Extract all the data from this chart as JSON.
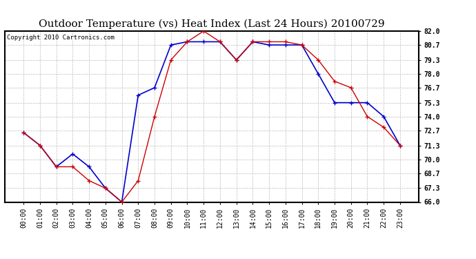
{
  "title": "Outdoor Temperature (vs) Heat Index (Last 24 Hours) 20100729",
  "copyright": "Copyright 2010 Cartronics.com",
  "x_labels": [
    "00:00",
    "01:00",
    "02:00",
    "03:00",
    "04:00",
    "05:00",
    "06:00",
    "07:00",
    "08:00",
    "09:00",
    "10:00",
    "11:00",
    "12:00",
    "13:00",
    "14:00",
    "15:00",
    "16:00",
    "17:00",
    "18:00",
    "19:00",
    "20:00",
    "21:00",
    "22:00",
    "23:00"
  ],
  "temp_red": [
    72.5,
    71.3,
    69.3,
    69.3,
    68.0,
    67.3,
    66.0,
    68.0,
    74.0,
    79.3,
    81.0,
    82.0,
    81.0,
    79.3,
    81.0,
    81.0,
    81.0,
    80.7,
    79.3,
    77.3,
    76.7,
    74.0,
    73.0,
    71.3
  ],
  "heat_blue": [
    72.5,
    71.3,
    69.3,
    70.5,
    69.3,
    67.3,
    66.0,
    76.0,
    76.7,
    80.7,
    81.0,
    81.0,
    81.0,
    79.3,
    81.0,
    80.7,
    80.7,
    80.7,
    78.0,
    75.3,
    75.3,
    75.3,
    74.0,
    71.3
  ],
  "ylim": [
    66.0,
    82.0
  ],
  "yticks": [
    66.0,
    67.3,
    68.7,
    70.0,
    71.3,
    72.7,
    74.0,
    75.3,
    76.7,
    78.0,
    79.3,
    80.7,
    82.0
  ],
  "red_color": "#cc0000",
  "blue_color": "#0000cc",
  "bg_color": "#ffffff",
  "grid_color": "#bbbbbb",
  "title_fontsize": 11,
  "copyright_fontsize": 6.5,
  "tick_fontsize": 7,
  "ytick_fontsize": 7
}
